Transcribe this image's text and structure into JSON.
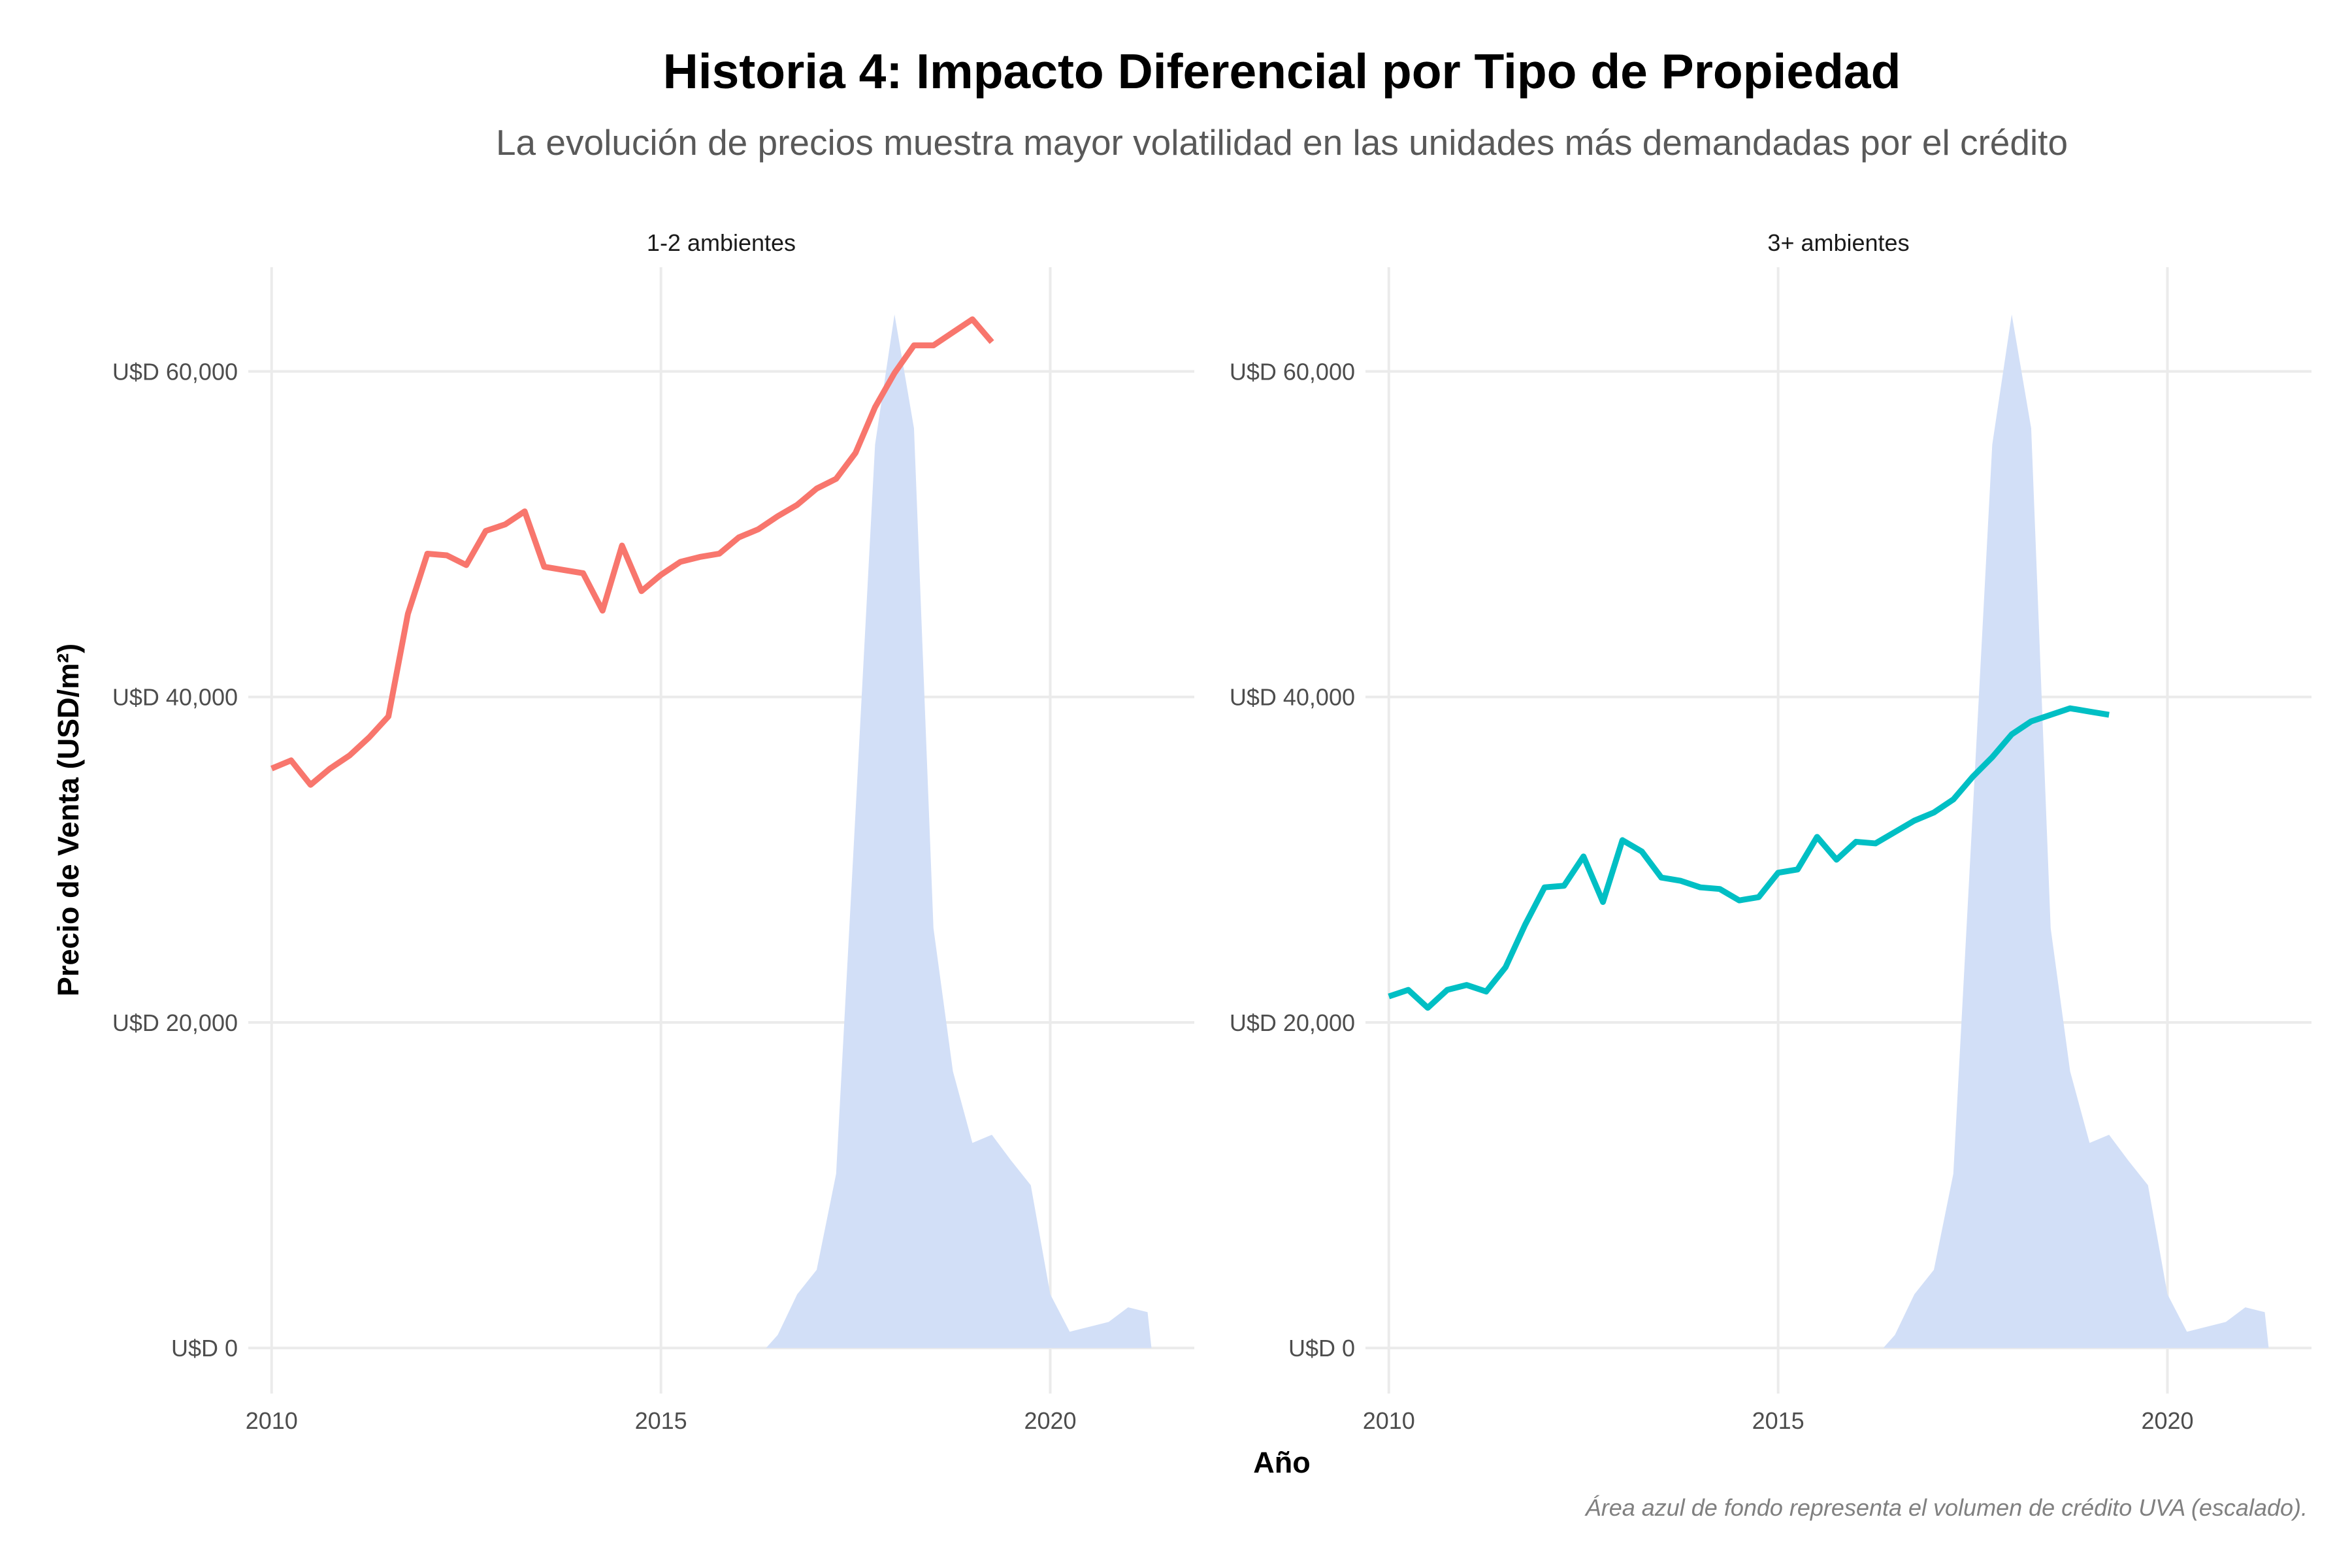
{
  "title": "Historia 4: Impacto Diferencial por Tipo de Propiedad",
  "subtitle": "La evolución de precios muestra mayor volatilidad en las unidades más demandadas por el crédito",
  "caption": "Área azul de fondo representa el volumen de crédito UVA (escalado).",
  "chart_data": {
    "type": "line",
    "facets": [
      "1-2 ambientes",
      "3+ ambientes"
    ],
    "xlabel": "Año",
    "ylabel": "Precio de Venta (USD/m²)",
    "xlim": [
      2009.7,
      2021.85
    ],
    "ylim": [
      -2800,
      66400
    ],
    "x_ticks": [
      2010,
      2015,
      2020
    ],
    "x_tick_labels": [
      "2010",
      "2015",
      "2020"
    ],
    "y_ticks": [
      0,
      20000,
      40000,
      60000
    ],
    "y_tick_labels": [
      "U$D 0",
      "U$D 20,000",
      "U$D 40,000",
      "U$D 60,000"
    ],
    "grid": true,
    "colors": {
      "area": "#d2dff7",
      "series_1": "#f8766d",
      "series_2": "#00bfc4",
      "grid": "#ebebeb"
    },
    "area": {
      "x": [
        2016.35,
        2016.5,
        2016.75,
        2017.0,
        2017.25,
        2017.5,
        2017.75,
        2018.0,
        2018.25,
        2018.5,
        2018.75,
        2019.0,
        2019.25,
        2019.5,
        2019.75,
        2020.0,
        2020.25,
        2020.5,
        2020.75,
        2021.0,
        2021.25,
        2021.3
      ],
      "values": [
        0,
        800,
        3300,
        4800,
        10700,
        33000,
        55500,
        63500,
        56500,
        25800,
        17000,
        12600,
        13100,
        11500,
        10000,
        3300,
        1000,
        1300,
        1600,
        2500,
        2200,
        0
      ]
    },
    "series": [
      {
        "x": [
          2010.0,
          2010.25,
          2010.5,
          2010.75,
          2011.0,
          2011.25,
          2011.5,
          2011.75,
          2012.0,
          2012.25,
          2012.5,
          2012.75,
          2013.0,
          2013.25,
          2013.5,
          2013.75,
          2014.0,
          2014.25,
          2014.5,
          2014.75,
          2015.0,
          2015.25,
          2015.5,
          2015.75,
          2016.0,
          2016.25,
          2016.5,
          2016.75,
          2017.0,
          2017.25,
          2017.5,
          2017.75,
          2018.0,
          2018.25,
          2018.5,
          2018.75,
          2019.0,
          2019.25
        ],
        "values": [
          35600,
          36100,
          34600,
          35600,
          36400,
          37500,
          38800,
          45100,
          48800,
          48700,
          48100,
          50200,
          50600,
          51400,
          48000,
          47800,
          47600,
          45300,
          49300,
          46500,
          47500,
          48300,
          48600,
          48800,
          49800,
          50300,
          51100,
          51800,
          52800,
          53400,
          55000,
          57800,
          59900,
          61600,
          61600,
          62400,
          63200,
          61800
        ]
      },
      {
        "x": [
          2010.0,
          2010.25,
          2010.5,
          2010.75,
          2011.0,
          2011.25,
          2011.5,
          2011.75,
          2012.0,
          2012.25,
          2012.5,
          2012.75,
          2013.0,
          2013.25,
          2013.5,
          2013.75,
          2014.0,
          2014.25,
          2014.5,
          2014.75,
          2015.0,
          2015.25,
          2015.5,
          2015.75,
          2016.0,
          2016.25,
          2016.5,
          2016.75,
          2017.0,
          2017.25,
          2017.5,
          2017.75,
          2018.0,
          2018.25,
          2018.5,
          2018.75,
          2019.0,
          2019.25
        ],
        "values": [
          21600,
          22000,
          20900,
          22000,
          22300,
          21900,
          23400,
          26000,
          28300,
          28400,
          30200,
          27400,
          31200,
          30500,
          28900,
          28700,
          28300,
          28200,
          27500,
          27700,
          29200,
          29400,
          31400,
          30000,
          31100,
          31000,
          31700,
          32400,
          32900,
          33700,
          35100,
          36300,
          37700,
          38500,
          38900,
          39300,
          39100,
          38900
        ]
      }
    ]
  }
}
